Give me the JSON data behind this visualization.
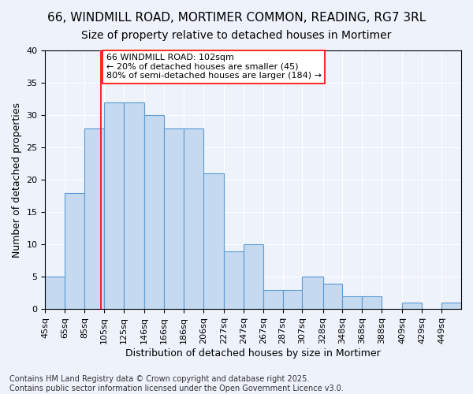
{
  "title": "66, WINDMILL ROAD, MORTIMER COMMON, READING, RG7 3RL",
  "subtitle": "Size of property relative to detached houses in Mortimer",
  "xlabel": "Distribution of detached houses by size in Mortimer",
  "ylabel": "Number of detached properties",
  "bar_values": [
    5,
    18,
    28,
    32,
    32,
    30,
    28,
    28,
    21,
    9,
    10,
    3,
    3,
    5,
    4,
    2,
    2,
    0,
    1,
    0,
    1
  ],
  "bin_edges": [
    45,
    65,
    85,
    105,
    125,
    146,
    166,
    186,
    206,
    227,
    247,
    267,
    287,
    307,
    328,
    348,
    368,
    388,
    409,
    429,
    449,
    469
  ],
  "bin_labels": [
    "45sq",
    "65sq",
    "85sq",
    "105sq",
    "125sq",
    "146sq",
    "166sq",
    "186sq",
    "206sq",
    "227sq",
    "247sq",
    "267sq",
    "287sq",
    "307sq",
    "328sq",
    "348sq",
    "368sq",
    "388sq",
    "409sq",
    "429sq",
    "449sq"
  ],
  "bar_color": "#c5d9f0",
  "bar_edge_color": "#5b9bd5",
  "vline_x": 102,
  "vline_color": "#ff0000",
  "ylim": [
    0,
    40
  ],
  "yticks": [
    0,
    5,
    10,
    15,
    20,
    25,
    30,
    35,
    40
  ],
  "annotation_text": "66 WINDMILL ROAD: 102sqm\n← 20% of detached houses are smaller (45)\n80% of semi-detached houses are larger (184) →",
  "annotation_box_color": "#ffffff",
  "annotation_box_edgecolor": "#ff0000",
  "footer_text": "Contains HM Land Registry data © Crown copyright and database right 2025.\nContains public sector information licensed under the Open Government Licence v3.0.",
  "bg_color": "#eef2fa",
  "plot_bg_color": "#eef2fa",
  "title_fontsize": 11,
  "subtitle_fontsize": 10,
  "axis_label_fontsize": 9,
  "tick_fontsize": 8,
  "annotation_fontsize": 8,
  "footer_fontsize": 7
}
